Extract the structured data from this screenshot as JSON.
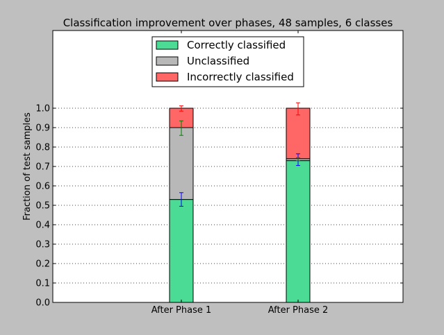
{
  "chart_data": {
    "type": "bar",
    "stacked": true,
    "title": "Classification improvement over phases, 48 samples, 6 classes",
    "ylabel": "Fraction of test samples",
    "xlabel": "",
    "categories": [
      "After Phase 1",
      "After Phase 2"
    ],
    "ylim": [
      0,
      1.0
    ],
    "y_ticks": [
      "0.0",
      "0.1",
      "0.2",
      "0.3",
      "0.4",
      "0.5",
      "0.6",
      "0.7",
      "0.8",
      "0.9",
      "1.0"
    ],
    "grid": "horizontal dotted",
    "legend_placement": "top-center",
    "series": [
      {
        "name": "Correctly classified",
        "color": "#4bdb95",
        "values": [
          0.53,
          0.73
        ],
        "error_tops": [
          0.565,
          0.765
        ],
        "error_bottoms": [
          0.495,
          0.705
        ],
        "error_color": "#0000ff"
      },
      {
        "name": "Unclassified",
        "color": "#b8b8b8",
        "values": [
          0.37,
          0.01
        ],
        "error_tops": [
          0.935,
          0.745
        ],
        "error_bottoms": [
          0.86,
          0.73
        ],
        "error_color": "#008000"
      },
      {
        "name": "Incorrectly classified",
        "color": "#ff6666",
        "values": [
          0.1,
          0.26
        ],
        "error_tops": [
          1.012,
          1.028
        ],
        "error_bottoms": [
          0.985,
          0.965
        ],
        "error_color": "#ff0000"
      }
    ]
  }
}
